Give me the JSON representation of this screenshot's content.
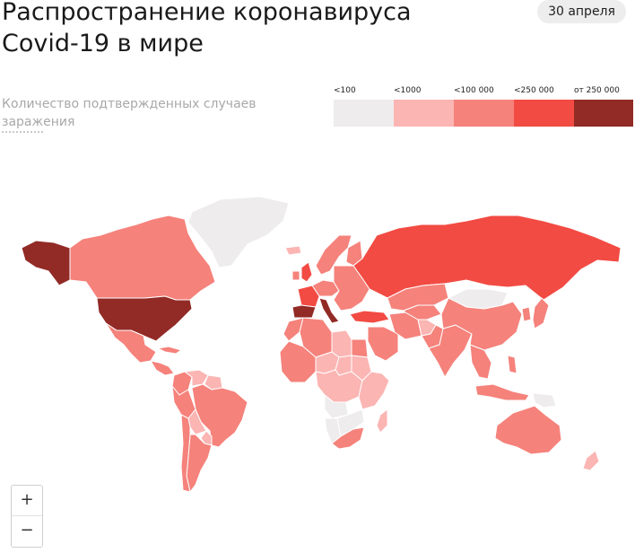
{
  "header": {
    "title": "Распространение коронавируса Covid-19 в мире",
    "date": "30 апреля"
  },
  "legend": {
    "caption": "Количество подтвержденных случаев заражения",
    "bins": [
      {
        "label": "<100",
        "color": "#eeeced"
      },
      {
        "label": "<1000",
        "color": "#fbb5b3"
      },
      {
        "label": "<100 000",
        "color": "#f5827b"
      },
      {
        "label": "<250 000",
        "color": "#f24b43"
      },
      {
        "label": "от 250 000",
        "color": "#922a26"
      }
    ]
  },
  "map": {
    "regions": [
      {
        "name": "Greenland",
        "level": 0
      },
      {
        "name": "Alaska",
        "level": 4
      },
      {
        "name": "Canada",
        "level": 2
      },
      {
        "name": "USA",
        "level": 4
      },
      {
        "name": "Mexico",
        "level": 2
      },
      {
        "name": "Central America",
        "level": 2
      },
      {
        "name": "Cuba",
        "level": 2
      },
      {
        "name": "Colombia",
        "level": 2
      },
      {
        "name": "Venezuela",
        "level": 1
      },
      {
        "name": "Guianas",
        "level": 1
      },
      {
        "name": "Brazil",
        "level": 2
      },
      {
        "name": "Peru",
        "level": 2
      },
      {
        "name": "Bolivia",
        "level": 1
      },
      {
        "name": "Paraguay",
        "level": 1
      },
      {
        "name": "Argentina",
        "level": 2
      },
      {
        "name": "Chile",
        "level": 2
      },
      {
        "name": "Iceland",
        "level": 1
      },
      {
        "name": "UK",
        "level": 3
      },
      {
        "name": "Ireland",
        "level": 2
      },
      {
        "name": "Scandinavia",
        "level": 2
      },
      {
        "name": "Finland",
        "level": 2
      },
      {
        "name": "Western Europe",
        "level": 2
      },
      {
        "name": "France",
        "level": 3
      },
      {
        "name": "Spain",
        "level": 4
      },
      {
        "name": "Italy",
        "level": 4
      },
      {
        "name": "Eastern Europe",
        "level": 2
      },
      {
        "name": "Russia",
        "level": 3
      },
      {
        "name": "Turkey",
        "level": 3
      },
      {
        "name": "Morocco",
        "level": 2
      },
      {
        "name": "Algeria",
        "level": 2
      },
      {
        "name": "Libya",
        "level": 1
      },
      {
        "name": "Egypt",
        "level": 2
      },
      {
        "name": "West Africa",
        "level": 2
      },
      {
        "name": "Sahel",
        "level": 1
      },
      {
        "name": "Chad",
        "level": 1
      },
      {
        "name": "Sudan",
        "level": 1
      },
      {
        "name": "Central Africa",
        "level": 1
      },
      {
        "name": "East Africa",
        "level": 1
      },
      {
        "name": "Angola",
        "level": 0
      },
      {
        "name": "Namibia",
        "level": 0
      },
      {
        "name": "Botswana",
        "level": 0
      },
      {
        "name": "South Africa",
        "level": 2
      },
      {
        "name": "Madagascar",
        "level": 1
      },
      {
        "name": "Saudi Arabia",
        "level": 2
      },
      {
        "name": "Iran",
        "level": 2
      },
      {
        "name": "Kazakhstan",
        "level": 2
      },
      {
        "name": "Central Asia",
        "level": 2
      },
      {
        "name": "Afghanistan",
        "level": 1
      },
      {
        "name": "Pakistan",
        "level": 2
      },
      {
        "name": "India",
        "level": 2
      },
      {
        "name": "Mongolia",
        "level": 0
      },
      {
        "name": "China",
        "level": 2
      },
      {
        "name": "Japan",
        "level": 2
      },
      {
        "name": "Korea",
        "level": 2
      },
      {
        "name": "Southeast Asia",
        "level": 2
      },
      {
        "name": "Indonesia",
        "level": 2
      },
      {
        "name": "Philippines",
        "level": 2
      },
      {
        "name": "Papua New Guinea",
        "level": 0
      },
      {
        "name": "Australia",
        "level": 2
      },
      {
        "name": "New Zealand",
        "level": 1
      }
    ]
  },
  "controls": {
    "zoom_in": "+",
    "zoom_out": "−"
  }
}
